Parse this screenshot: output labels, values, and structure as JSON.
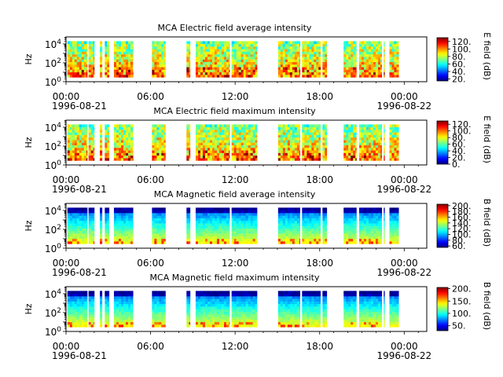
{
  "chart_data": [
    {
      "type": "heatmap",
      "title": "MCA  Electric field average intensity",
      "ylabel": "Hz",
      "y_ticks": [
        {
          "label": "10",
          "exp": "0",
          "value": 1
        },
        {
          "label": "10",
          "exp": "2",
          "value": 100
        },
        {
          "label": "10",
          "exp": "4",
          "value": 10000
        }
      ],
      "x_ticks": [
        {
          "label": "00:00",
          "date": "1996-08-21",
          "hour": 0
        },
        {
          "label": "06:00",
          "date": "",
          "hour": 6
        },
        {
          "label": "12:00",
          "date": "",
          "hour": 12
        },
        {
          "label": "18:00",
          "date": "",
          "hour": 18
        },
        {
          "label": "00:00",
          "date": "1996-08-22",
          "hour": 24
        }
      ],
      "colorbar": {
        "label": "E field (dB)",
        "min": 15,
        "max": 130,
        "ticks": [
          "20.",
          "40.",
          "60.",
          "80.",
          "100.",
          "120."
        ],
        "tick_values": [
          20,
          40,
          60,
          80,
          100,
          120
        ]
      },
      "data_intervals_hours": [
        [
          0.1,
          1.5
        ],
        [
          1.6,
          2.0
        ],
        [
          2.4,
          2.55
        ],
        [
          2.75,
          3.05
        ],
        [
          3.4,
          4.75
        ],
        [
          6.1,
          7.05
        ],
        [
          8.55,
          8.8
        ],
        [
          9.2,
          11.6
        ],
        [
          11.75,
          13.55
        ],
        [
          15.05,
          16.6
        ],
        [
          16.75,
          18.05
        ],
        [
          18.2,
          18.5
        ],
        [
          19.7,
          20.6
        ],
        [
          20.8,
          22.4
        ],
        [
          22.55,
          22.6
        ],
        [
          22.95,
          23.6
        ]
      ],
      "freq_range_hz": [
        3,
        20000
      ],
      "colormap": "jet"
    },
    {
      "type": "heatmap",
      "title": "MCA  Electric field maximum intensity",
      "ylabel": "Hz",
      "y_ticks": [
        {
          "label": "10",
          "exp": "0",
          "value": 1
        },
        {
          "label": "10",
          "exp": "2",
          "value": 100
        },
        {
          "label": "10",
          "exp": "4",
          "value": 10000
        }
      ],
      "x_ticks": [
        {
          "label": "00:00",
          "date": "1996-08-21",
          "hour": 0
        },
        {
          "label": "06:00",
          "date": "",
          "hour": 6
        },
        {
          "label": "12:00",
          "date": "",
          "hour": 12
        },
        {
          "label": "18:00",
          "date": "",
          "hour": 18
        },
        {
          "label": "00:00",
          "date": "1996-08-22",
          "hour": 24
        }
      ],
      "colorbar": {
        "label": "E field (dB)",
        "min": 0,
        "max": 130,
        "ticks": [
          "0.",
          "20.",
          "40.",
          "60.",
          "80.",
          "100.",
          "120."
        ],
        "tick_values": [
          0,
          20,
          40,
          60,
          80,
          100,
          120
        ]
      },
      "data_intervals_hours": [
        [
          0.1,
          1.5
        ],
        [
          1.6,
          2.0
        ],
        [
          2.4,
          2.55
        ],
        [
          2.75,
          3.05
        ],
        [
          3.4,
          4.75
        ],
        [
          6.1,
          7.05
        ],
        [
          8.55,
          8.8
        ],
        [
          9.2,
          11.6
        ],
        [
          11.75,
          13.55
        ],
        [
          15.05,
          16.6
        ],
        [
          16.75,
          18.05
        ],
        [
          18.2,
          18.5
        ],
        [
          19.7,
          20.6
        ],
        [
          20.8,
          22.4
        ],
        [
          22.55,
          22.6
        ],
        [
          22.95,
          23.6
        ]
      ],
      "freq_range_hz": [
        3,
        20000
      ],
      "colormap": "jet"
    },
    {
      "type": "heatmap",
      "title": "MCA  Magnetic field average intensity",
      "ylabel": "Hz",
      "y_ticks": [
        {
          "label": "10",
          "exp": "0",
          "value": 1
        },
        {
          "label": "10",
          "exp": "2",
          "value": 100
        },
        {
          "label": "10",
          "exp": "4",
          "value": 10000
        }
      ],
      "x_ticks": [
        {
          "label": "00:00",
          "date": "1996-08-21",
          "hour": 0
        },
        {
          "label": "06:00",
          "date": "",
          "hour": 6
        },
        {
          "label": "12:00",
          "date": "",
          "hour": 12
        },
        {
          "label": "18:00",
          "date": "",
          "hour": 18
        },
        {
          "label": "00:00",
          "date": "1996-08-22",
          "hour": 24
        }
      ],
      "colorbar": {
        "label": "B field (dB)",
        "min": 55,
        "max": 205,
        "ticks": [
          "60.",
          "80.",
          "100.",
          "120.",
          "140.",
          "160.",
          "180.",
          "200."
        ],
        "tick_values": [
          60,
          80,
          100,
          120,
          140,
          160,
          180,
          200
        ]
      },
      "data_intervals_hours": [
        [
          0.1,
          1.5
        ],
        [
          1.6,
          2.0
        ],
        [
          2.4,
          2.55
        ],
        [
          2.75,
          3.05
        ],
        [
          3.4,
          4.75
        ],
        [
          6.1,
          7.05
        ],
        [
          8.55,
          8.8
        ],
        [
          9.2,
          11.6
        ],
        [
          11.75,
          13.55
        ],
        [
          15.05,
          16.6
        ],
        [
          16.75,
          18.05
        ],
        [
          18.2,
          18.5
        ],
        [
          19.7,
          20.6
        ],
        [
          20.8,
          22.4
        ],
        [
          22.55,
          22.6
        ],
        [
          22.95,
          23.6
        ]
      ],
      "freq_range_hz": [
        3,
        20000
      ],
      "colormap": "jet"
    },
    {
      "type": "heatmap",
      "title": "MCA  Magnetic field maximum intensity",
      "ylabel": "Hz",
      "y_ticks": [
        {
          "label": "10",
          "exp": "0",
          "value": 1
        },
        {
          "label": "10",
          "exp": "2",
          "value": 100
        },
        {
          "label": "10",
          "exp": "4",
          "value": 10000
        }
      ],
      "x_ticks": [
        {
          "label": "00:00",
          "date": "1996-08-21",
          "hour": 0
        },
        {
          "label": "06:00",
          "date": "",
          "hour": 6
        },
        {
          "label": "12:00",
          "date": "",
          "hour": 12
        },
        {
          "label": "18:00",
          "date": "",
          "hour": 18
        },
        {
          "label": "00:00",
          "date": "1996-08-22",
          "hour": 24
        }
      ],
      "colorbar": {
        "label": "B field (dB)",
        "min": 30,
        "max": 205,
        "ticks": [
          "50.",
          "100.",
          "150.",
          "200."
        ],
        "tick_values": [
          50,
          100,
          150,
          200
        ]
      },
      "data_intervals_hours": [
        [
          0.1,
          1.5
        ],
        [
          1.6,
          2.0
        ],
        [
          2.4,
          2.55
        ],
        [
          2.75,
          3.05
        ],
        [
          3.4,
          4.75
        ],
        [
          6.1,
          7.05
        ],
        [
          8.55,
          8.8
        ],
        [
          9.2,
          11.6
        ],
        [
          11.75,
          13.55
        ],
        [
          15.05,
          16.6
        ],
        [
          16.75,
          18.05
        ],
        [
          18.2,
          18.5
        ],
        [
          19.7,
          20.6
        ],
        [
          20.8,
          22.4
        ],
        [
          22.55,
          22.6
        ],
        [
          22.95,
          23.6
        ]
      ],
      "freq_range_hz": [
        3,
        20000
      ],
      "colormap": "jet"
    }
  ]
}
